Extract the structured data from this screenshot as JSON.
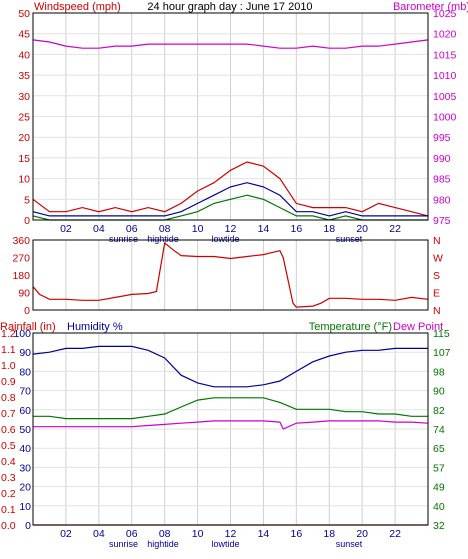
{
  "colors": {
    "red": "#cc0000",
    "blue": "#000099",
    "green": "#007700",
    "magenta": "#cc00cc",
    "grid": "#cfcfcf",
    "frame": "#000000"
  },
  "chart_data": [
    {
      "type": "line",
      "title": "24 hour graph day : June 17 2010",
      "left_axis_label": "Windspeed (mph)",
      "right_axis_label": "Barometer (mb)",
      "ylim_left": [
        0,
        50
      ],
      "left_ticks": [
        "0",
        "5",
        "10",
        "15",
        "20",
        "25",
        "30",
        "35",
        "40",
        "45",
        "50"
      ],
      "ylim_right": [
        975,
        1025
      ],
      "right_ticks": [
        "975",
        "980",
        "985",
        "990",
        "995",
        "1000",
        "1005",
        "1010",
        "1015",
        "1020",
        "1025"
      ],
      "xlim": [
        0,
        24
      ],
      "x_tick_labels": [
        {
          "x": 2,
          "label": "02"
        },
        {
          "x": 4,
          "label": "04"
        },
        {
          "x": 6,
          "label": "06"
        },
        {
          "x": 8,
          "label": "08"
        },
        {
          "x": 10,
          "label": "10"
        },
        {
          "x": 12,
          "label": "12"
        },
        {
          "x": 14,
          "label": "14"
        },
        {
          "x": 16,
          "label": "16"
        },
        {
          "x": 18,
          "label": "18"
        },
        {
          "x": 20,
          "label": "20"
        },
        {
          "x": 22,
          "label": "22"
        }
      ],
      "events": [
        {
          "x": 5.5,
          "label": "sunrise"
        },
        {
          "x": 7.9,
          "label": "hightide"
        },
        {
          "x": 11.7,
          "label": "lowtide"
        },
        {
          "x": 19.2,
          "label": "sunset"
        }
      ],
      "grid": true,
      "series": [
        {
          "axis": "right",
          "color": "magenta",
          "x": [
            0,
            1,
            2,
            3,
            4,
            5,
            6,
            7,
            8,
            9,
            10,
            11,
            12,
            13,
            14,
            15,
            16,
            17,
            18,
            19,
            20,
            21,
            22,
            23,
            24
          ],
          "values": [
            1018.5,
            1018,
            1017,
            1016.5,
            1016.5,
            1017,
            1017,
            1017.5,
            1017.5,
            1017.5,
            1017.5,
            1017.5,
            1017.5,
            1017.5,
            1017,
            1016.5,
            1016.5,
            1017,
            1016.5,
            1016.5,
            1017,
            1017,
            1017.5,
            1018,
            1018.5
          ]
        },
        {
          "axis": "left",
          "color": "red",
          "x": [
            0,
            1,
            2,
            3,
            4,
            5,
            6,
            7,
            8,
            9,
            10,
            11,
            12,
            13,
            14,
            15,
            16,
            17,
            18,
            19,
            20,
            21,
            22,
            23,
            24
          ],
          "values": [
            5,
            2,
            2,
            3,
            2,
            3,
            2,
            3,
            2,
            4,
            7,
            9,
            12,
            14,
            13,
            10,
            4,
            3,
            3,
            3,
            2,
            4,
            3,
            2,
            1
          ]
        },
        {
          "axis": "left",
          "color": "blue",
          "x": [
            0,
            1,
            2,
            3,
            4,
            5,
            6,
            7,
            8,
            9,
            10,
            11,
            12,
            13,
            14,
            15,
            16,
            17,
            18,
            19,
            20,
            21,
            22,
            23,
            24
          ],
          "values": [
            2,
            1,
            1,
            1,
            1,
            1,
            1,
            1,
            1,
            2,
            4,
            6,
            8,
            9,
            8,
            6,
            2,
            2,
            1,
            2,
            1,
            1,
            1,
            1,
            1
          ]
        },
        {
          "axis": "left",
          "color": "green",
          "x": [
            0,
            1,
            2,
            3,
            4,
            5,
            6,
            7,
            8,
            9,
            10,
            11,
            12,
            13,
            14,
            15,
            16,
            17,
            18,
            19,
            20,
            21,
            22,
            23,
            24
          ],
          "values": [
            1,
            0,
            0,
            0,
            0,
            0,
            0,
            0,
            0,
            1,
            2,
            4,
            5,
            6,
            5,
            3,
            1,
            1,
            0,
            1,
            0,
            0,
            0,
            0,
            0
          ]
        }
      ]
    },
    {
      "type": "line",
      "ylim_left": [
        0,
        360
      ],
      "left_ticks": [
        "0",
        "90",
        "180",
        "270",
        "360"
      ],
      "right_ticks": [
        "N",
        "E",
        "S",
        "W",
        "N"
      ],
      "xlim": [
        0,
        24
      ],
      "series": [
        {
          "axis": "left",
          "color": "red",
          "x": [
            0,
            0.4,
            1,
            2,
            3,
            4,
            5,
            6,
            7,
            7.5,
            8,
            8.5,
            9,
            10,
            11,
            12,
            13,
            14,
            15,
            15.2,
            15.8,
            16,
            17,
            17.5,
            18,
            19,
            20,
            21,
            22,
            23,
            24
          ],
          "values": [
            120,
            80,
            55,
            55,
            50,
            50,
            65,
            80,
            85,
            95,
            345,
            310,
            280,
            275,
            275,
            265,
            275,
            285,
            305,
            270,
            35,
            15,
            20,
            35,
            60,
            60,
            55,
            55,
            50,
            65,
            55
          ]
        }
      ]
    },
    {
      "type": "line",
      "left_axis_label": "Rainfall (in)",
      "humidity_label": "Humidity %",
      "right_axis_label": "Temperature (°F)",
      "dewpoint_label": "Dew Point",
      "ylim_rain": [
        0,
        1.2
      ],
      "rain_ticks": [
        "0.0",
        "0.1",
        "0.2",
        "0.3",
        "0.4",
        "0.5",
        "0.6",
        "0.7",
        "0.8",
        "0.9",
        "1.0",
        "1.1",
        "1.2"
      ],
      "ylim_humidity": [
        0,
        100
      ],
      "humidity_ticks": [
        "0",
        "10",
        "20",
        "30",
        "40",
        "50",
        "60",
        "70",
        "80",
        "90",
        "100"
      ],
      "ylim_temp": [
        32,
        115
      ],
      "temp_ticks": [
        "32",
        "40",
        "49",
        "57",
        "65",
        "74",
        "82",
        "90",
        "98",
        "107",
        "115"
      ],
      "xlim": [
        0,
        24
      ],
      "series": [
        {
          "name": "Rainfall",
          "axis": "rain",
          "color": "red",
          "x": [
            0,
            24
          ],
          "values": [
            0,
            0
          ]
        },
        {
          "name": "Humidity",
          "axis": "humidity",
          "color": "blue",
          "x": [
            0,
            1,
            2,
            3,
            4,
            5,
            6,
            7,
            8,
            9,
            10,
            11,
            12,
            13,
            14,
            15,
            16,
            17,
            18,
            19,
            20,
            21,
            22,
            23,
            24
          ],
          "values": [
            89,
            90,
            92,
            92,
            93,
            93,
            93,
            91,
            87,
            78,
            74,
            72,
            72,
            72,
            73,
            75,
            80,
            85,
            88,
            90,
            91,
            91,
            92,
            92,
            92
          ]
        },
        {
          "name": "Temperature",
          "axis": "temp",
          "color": "green",
          "x": [
            0,
            1,
            2,
            3,
            4,
            5,
            6,
            7,
            8,
            9,
            10,
            11,
            12,
            13,
            14,
            15,
            16,
            17,
            18,
            19,
            20,
            21,
            22,
            23,
            24
          ],
          "values": [
            79,
            79,
            78,
            78,
            78,
            78,
            78,
            79,
            80,
            83,
            86,
            87,
            87,
            87,
            87,
            85,
            82,
            82,
            82,
            81,
            81,
            80,
            80,
            79,
            79
          ]
        },
        {
          "name": "Dew Point",
          "axis": "temp",
          "color": "magenta",
          "x": [
            0,
            1,
            2,
            3,
            4,
            5,
            6,
            7,
            8,
            9,
            10,
            11,
            12,
            13,
            14,
            15,
            15.2,
            16,
            17,
            18,
            19,
            20,
            21,
            22,
            23,
            24
          ],
          "values": [
            74.5,
            74.5,
            74.5,
            74.5,
            74.5,
            74.5,
            74.5,
            75,
            75.5,
            76,
            76.5,
            77,
            77,
            77,
            77,
            76.5,
            73.5,
            76,
            76.5,
            77,
            77,
            77,
            77,
            76.5,
            76.5,
            76
          ]
        }
      ]
    }
  ]
}
